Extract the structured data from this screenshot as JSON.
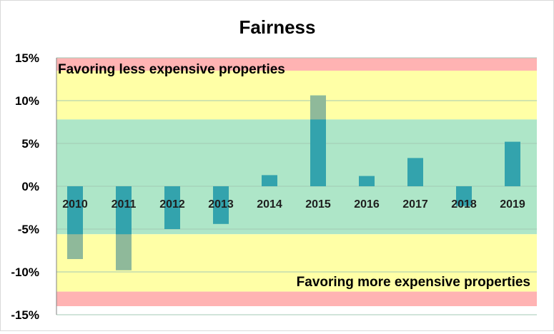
{
  "chart_data": {
    "type": "bar",
    "title": "Fairness",
    "xlabel": "",
    "ylabel": "",
    "categories": [
      "2010",
      "2011",
      "2012",
      "2013",
      "2014",
      "2015",
      "2016",
      "2017",
      "2018",
      "2019"
    ],
    "values": [
      -8.5,
      -9.8,
      -5.0,
      -4.4,
      1.3,
      10.6,
      1.2,
      3.3,
      -2.3,
      5.2
    ],
    "value_unit": "%",
    "ylim": [
      -15,
      15
    ],
    "yticks": [
      15,
      10,
      5,
      0,
      -5,
      -10,
      -15
    ],
    "ytick_labels": [
      "15%",
      "10%",
      "5%",
      "0%",
      "-5%",
      "-10%",
      "-15%"
    ],
    "grid": true,
    "legend": "none",
    "bands": [
      {
        "from": 13.5,
        "to": 15.0,
        "color": "#ffb3b3"
      },
      {
        "from": 7.8,
        "to": 13.5,
        "color": "#ffffa6"
      },
      {
        "from": -5.6,
        "to": 7.8,
        "color": "#aee6c8"
      },
      {
        "from": -12.3,
        "to": -5.6,
        "color": "#ffffa6"
      },
      {
        "from": -14.0,
        "to": -12.3,
        "color": "#ffb3b3"
      }
    ],
    "annotations": {
      "upper": "Favoring less expensive properties",
      "lower": "Favoring more expensive properties"
    },
    "colors": {
      "bar": "#33a3ad",
      "bar_outside_band": "#8fb99a",
      "grid": "#a3c9b4",
      "axis": "#808080"
    }
  }
}
